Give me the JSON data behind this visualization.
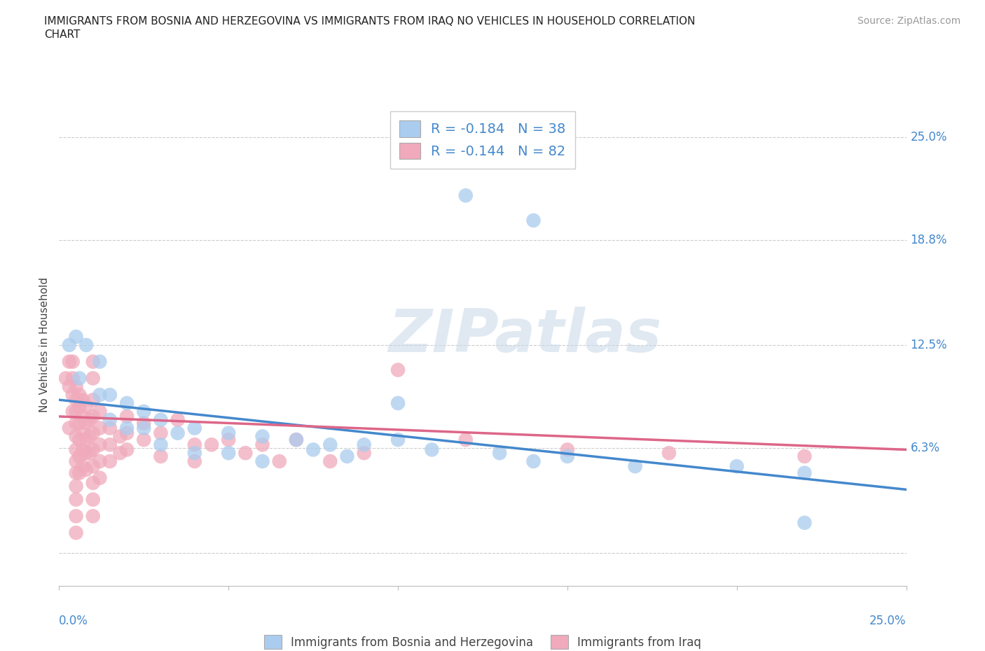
{
  "title_line1": "IMMIGRANTS FROM BOSNIA AND HERZEGOVINA VS IMMIGRANTS FROM IRAQ NO VEHICLES IN HOUSEHOLD CORRELATION",
  "title_line2": "CHART",
  "source": "Source: ZipAtlas.com",
  "ylabel": "No Vehicles in Household",
  "xlim": [
    0.0,
    0.25
  ],
  "ylim": [
    -0.02,
    0.27
  ],
  "blue_color": "#aaccee",
  "pink_color": "#f0aabb",
  "blue_line_color": "#4488cc",
  "pink_line_color": "#dd6688",
  "background_color": "#ffffff",
  "grid_color": "#cccccc",
  "blue_scatter": [
    [
      0.003,
      0.125
    ],
    [
      0.005,
      0.13
    ],
    [
      0.006,
      0.105
    ],
    [
      0.008,
      0.125
    ],
    [
      0.012,
      0.115
    ],
    [
      0.012,
      0.095
    ],
    [
      0.015,
      0.095
    ],
    [
      0.015,
      0.08
    ],
    [
      0.02,
      0.09
    ],
    [
      0.02,
      0.075
    ],
    [
      0.025,
      0.085
    ],
    [
      0.025,
      0.075
    ],
    [
      0.03,
      0.08
    ],
    [
      0.03,
      0.065
    ],
    [
      0.035,
      0.072
    ],
    [
      0.04,
      0.075
    ],
    [
      0.04,
      0.06
    ],
    [
      0.05,
      0.072
    ],
    [
      0.05,
      0.06
    ],
    [
      0.06,
      0.07
    ],
    [
      0.06,
      0.055
    ],
    [
      0.07,
      0.068
    ],
    [
      0.075,
      0.062
    ],
    [
      0.08,
      0.065
    ],
    [
      0.085,
      0.058
    ],
    [
      0.09,
      0.065
    ],
    [
      0.1,
      0.068
    ],
    [
      0.1,
      0.09
    ],
    [
      0.11,
      0.062
    ],
    [
      0.13,
      0.06
    ],
    [
      0.14,
      0.055
    ],
    [
      0.15,
      0.058
    ],
    [
      0.17,
      0.052
    ],
    [
      0.2,
      0.052
    ],
    [
      0.22,
      0.048
    ],
    [
      0.22,
      0.018
    ],
    [
      0.12,
      0.215
    ],
    [
      0.14,
      0.2
    ]
  ],
  "pink_scatter": [
    [
      0.002,
      0.105
    ],
    [
      0.003,
      0.115
    ],
    [
      0.003,
      0.1
    ],
    [
      0.003,
      0.075
    ],
    [
      0.004,
      0.115
    ],
    [
      0.004,
      0.105
    ],
    [
      0.004,
      0.095
    ],
    [
      0.004,
      0.085
    ],
    [
      0.005,
      0.1
    ],
    [
      0.005,
      0.092
    ],
    [
      0.005,
      0.085
    ],
    [
      0.005,
      0.078
    ],
    [
      0.005,
      0.07
    ],
    [
      0.005,
      0.062
    ],
    [
      0.005,
      0.055
    ],
    [
      0.005,
      0.048
    ],
    [
      0.005,
      0.04
    ],
    [
      0.005,
      0.032
    ],
    [
      0.005,
      0.022
    ],
    [
      0.005,
      0.012
    ],
    [
      0.006,
      0.095
    ],
    [
      0.006,
      0.088
    ],
    [
      0.006,
      0.078
    ],
    [
      0.006,
      0.068
    ],
    [
      0.006,
      0.058
    ],
    [
      0.006,
      0.048
    ],
    [
      0.007,
      0.092
    ],
    [
      0.007,
      0.082
    ],
    [
      0.007,
      0.072
    ],
    [
      0.007,
      0.062
    ],
    [
      0.007,
      0.052
    ],
    [
      0.008,
      0.088
    ],
    [
      0.008,
      0.078
    ],
    [
      0.008,
      0.068
    ],
    [
      0.008,
      0.06
    ],
    [
      0.008,
      0.05
    ],
    [
      0.009,
      0.08
    ],
    [
      0.009,
      0.07
    ],
    [
      0.009,
      0.06
    ],
    [
      0.01,
      0.115
    ],
    [
      0.01,
      0.105
    ],
    [
      0.01,
      0.092
    ],
    [
      0.01,
      0.082
    ],
    [
      0.01,
      0.072
    ],
    [
      0.01,
      0.062
    ],
    [
      0.01,
      0.052
    ],
    [
      0.01,
      0.042
    ],
    [
      0.01,
      0.032
    ],
    [
      0.01,
      0.022
    ],
    [
      0.012,
      0.085
    ],
    [
      0.012,
      0.075
    ],
    [
      0.012,
      0.065
    ],
    [
      0.012,
      0.055
    ],
    [
      0.012,
      0.045
    ],
    [
      0.015,
      0.075
    ],
    [
      0.015,
      0.065
    ],
    [
      0.015,
      0.055
    ],
    [
      0.018,
      0.07
    ],
    [
      0.018,
      0.06
    ],
    [
      0.02,
      0.082
    ],
    [
      0.02,
      0.072
    ],
    [
      0.02,
      0.062
    ],
    [
      0.025,
      0.078
    ],
    [
      0.025,
      0.068
    ],
    [
      0.03,
      0.072
    ],
    [
      0.03,
      0.058
    ],
    [
      0.035,
      0.08
    ],
    [
      0.04,
      0.065
    ],
    [
      0.04,
      0.055
    ],
    [
      0.045,
      0.065
    ],
    [
      0.05,
      0.068
    ],
    [
      0.055,
      0.06
    ],
    [
      0.06,
      0.065
    ],
    [
      0.065,
      0.055
    ],
    [
      0.07,
      0.068
    ],
    [
      0.08,
      0.055
    ],
    [
      0.09,
      0.06
    ],
    [
      0.1,
      0.11
    ],
    [
      0.12,
      0.068
    ],
    [
      0.15,
      0.062
    ],
    [
      0.18,
      0.06
    ],
    [
      0.22,
      0.058
    ]
  ],
  "blue_line_x0": 0.0,
  "blue_line_y0": 0.092,
  "blue_line_x1": 0.25,
  "blue_line_y1": 0.038,
  "pink_line_x0": 0.0,
  "pink_line_y0": 0.082,
  "pink_line_x1": 0.25,
  "pink_line_y1": 0.062
}
